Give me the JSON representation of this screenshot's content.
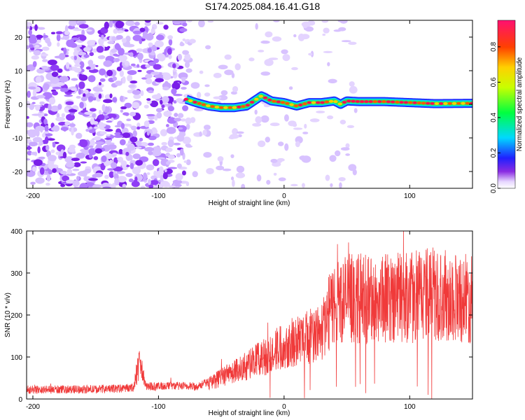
{
  "title": "S174.2025.084.16.41.G18",
  "chart_data": [
    {
      "type": "heatmap",
      "xlabel": "Height of straight line (km)",
      "ylabel": "Frequency (Hz)",
      "xlim": [
        -205,
        150
      ],
      "ylim": [
        -25,
        25
      ],
      "xticks": [
        -200,
        -100,
        0,
        100
      ],
      "yticks": [
        -20,
        -10,
        0,
        10,
        20
      ],
      "colorbar": {
        "label": "Normalized spectral amplitude",
        "range": [
          0,
          0.95
        ],
        "ticks": [
          0.0,
          0.2,
          0.4,
          0.6,
          0.8
        ]
      },
      "ridge": {
        "description_free": true,
        "x": [
          -78,
          -70,
          -60,
          -50,
          -40,
          -30,
          -22,
          -18,
          -10,
          0,
          10,
          20,
          30,
          40,
          45,
          50,
          60,
          80,
          100,
          120,
          150
        ],
        "y": [
          1.5,
          0.5,
          -0.5,
          -1,
          -1,
          -0.5,
          1.5,
          2.5,
          1,
          0.5,
          -0.5,
          0.5,
          0.5,
          1,
          0,
          1,
          0.8,
          0.8,
          0.5,
          0.2,
          0.3
        ]
      }
    },
    {
      "type": "line",
      "xlabel": "Height of straight line (km)",
      "ylabel": "SNR (10 * v/v)",
      "xlim": [
        -205,
        150
      ],
      "ylim": [
        0,
        400
      ],
      "xticks": [
        -200,
        -100,
        0,
        100
      ],
      "yticks": [
        0,
        100,
        200,
        300,
        400
      ],
      "color": "#f03a3a",
      "series": [
        {
          "x": [
            -205,
            -190,
            -170,
            -150,
            -130,
            -120,
            -115,
            -110,
            -100,
            -90,
            -80,
            -70,
            -60,
            -50,
            -40,
            -30,
            -20,
            -10,
            0,
            10,
            20,
            30,
            35,
            40,
            45,
            50,
            60,
            70,
            80,
            90,
            100,
            110,
            120,
            130,
            140,
            150
          ],
          "values": [
            22,
            22,
            23,
            23,
            25,
            28,
            85,
            30,
            30,
            32,
            30,
            30,
            40,
            50,
            65,
            80,
            95,
            110,
            130,
            140,
            150,
            160,
            200,
            230,
            235,
            240,
            240,
            235,
            240,
            245,
            240,
            250,
            250,
            245,
            245,
            235
          ]
        }
      ]
    }
  ]
}
